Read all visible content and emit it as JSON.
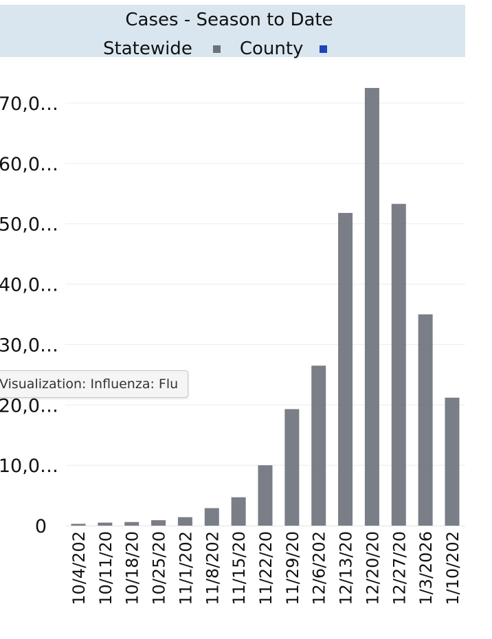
{
  "chart_data": {
    "type": "bar",
    "title": "Cases - Season to Date",
    "legend": {
      "placement": "top",
      "items": [
        {
          "label": "Statewide",
          "color": "#6b7079"
        },
        {
          "label": "County",
          "color": "#1f45b8"
        }
      ]
    },
    "categories": [
      "10/4/202",
      "10/11/20",
      "10/18/20",
      "10/25/20",
      "11/1/202",
      "11/8/202",
      "11/15/20",
      "11/22/20",
      "11/29/20",
      "12/6/202",
      "12/13/20",
      "12/20/20",
      "12/27/20",
      "1/3/2026",
      "1/10/202"
    ],
    "series": [
      {
        "name": "Statewide",
        "color": "#6b7079",
        "values": [
          300,
          500,
          600,
          900,
          1400,
          2900,
          4700,
          10000,
          19300,
          26500,
          51800,
          72500,
          53300,
          35000,
          21200
        ]
      }
    ],
    "y_tick_labels": [
      "0",
      "10,0…",
      "20,0…",
      "30,0…",
      "40,0…",
      "50,0…",
      "60,0…",
      "70,0…"
    ],
    "ylim": [
      0,
      70000
    ],
    "y_tick_step": 10000,
    "grid": true
  },
  "tooltip": {
    "text": "Visualization: Influenza: Flu"
  }
}
